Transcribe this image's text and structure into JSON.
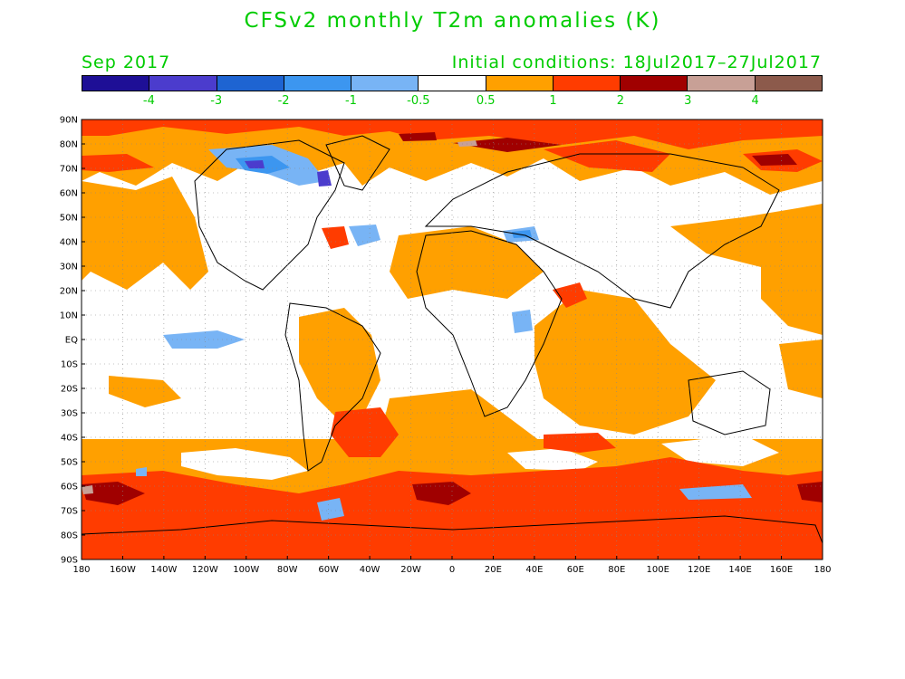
{
  "title": "CFSv2 monthly T2m anomalies (K)",
  "period": "Sep 2017",
  "initial_conditions": "Initial conditions: 18Jul2017–27Jul2017",
  "text_color": "#00cc00",
  "colorbar": {
    "colors": [
      "#1e0f96",
      "#4b3ccd",
      "#1e64d2",
      "#3c96f0",
      "#78b4f5",
      "#ffffff",
      "#ffa000",
      "#ff3c00",
      "#a00000",
      "#c8a096",
      "#8c5a4b"
    ],
    "labels": [
      "-4",
      "-3",
      "-2",
      "-1",
      "-0.5",
      "0.5",
      "1",
      "2",
      "3",
      "4"
    ]
  },
  "axes": {
    "lat_labels": [
      "90N",
      "80N",
      "70N",
      "60N",
      "50N",
      "40N",
      "30N",
      "20N",
      "10N",
      "EQ",
      "10S",
      "20S",
      "30S",
      "40S",
      "50S",
      "60S",
      "70S",
      "80S",
      "90S"
    ],
    "lon_labels": [
      "180",
      "160W",
      "140W",
      "120W",
      "100W",
      "80W",
      "60W",
      "40W",
      "20W",
      "0",
      "20E",
      "40E",
      "60E",
      "80E",
      "100E",
      "120E",
      "140E",
      "160E",
      "180"
    ]
  }
}
